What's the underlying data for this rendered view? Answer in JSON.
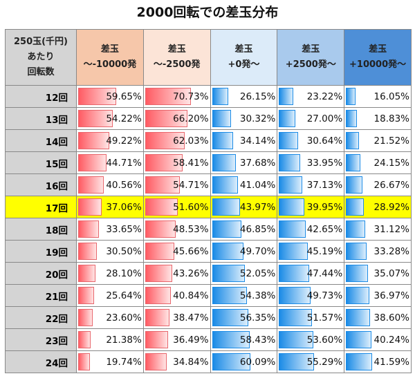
{
  "title": "2000回転での差玉分布",
  "chart_data": {
    "type": "table",
    "title": "2000回転での差玉分布",
    "row_header": [
      "250玉(千円)",
      "あたり",
      "回転数"
    ],
    "columns": [
      {
        "line1": "差玉",
        "line2": "～-10000発",
        "bg": "#f6c7aa",
        "bar": "red"
      },
      {
        "line1": "差玉",
        "line2": "～-2500発",
        "bg": "#fce4d7",
        "bar": "red"
      },
      {
        "line1": "差玉",
        "line2": "+0発～",
        "bg": "#dcebf9",
        "bar": "blue"
      },
      {
        "line1": "差玉",
        "line2": "+2500発～",
        "bg": "#a9caed",
        "bar": "blue"
      },
      {
        "line1": "差玉",
        "line2": "+10000発～",
        "bg": "#4e8fd7",
        "bar": "blue"
      }
    ],
    "highlight_row": "17回",
    "highlight_color": "#ffff00",
    "rows": [
      {
        "label": "12回",
        "values": [
          59.65,
          70.73,
          26.15,
          23.22,
          16.05
        ]
      },
      {
        "label": "13回",
        "values": [
          54.22,
          66.2,
          30.32,
          27.0,
          18.83
        ]
      },
      {
        "label": "14回",
        "values": [
          49.22,
          62.03,
          34.14,
          30.64,
          21.52
        ]
      },
      {
        "label": "15回",
        "values": [
          44.71,
          58.41,
          37.68,
          33.95,
          24.15
        ]
      },
      {
        "label": "16回",
        "values": [
          40.56,
          54.71,
          41.04,
          37.13,
          26.67
        ]
      },
      {
        "label": "17回",
        "values": [
          37.06,
          51.6,
          43.97,
          39.95,
          28.92
        ]
      },
      {
        "label": "18回",
        "values": [
          33.65,
          48.53,
          46.85,
          42.65,
          31.12
        ]
      },
      {
        "label": "19回",
        "values": [
          30.5,
          45.66,
          49.7,
          45.19,
          33.28
        ]
      },
      {
        "label": "20回",
        "values": [
          28.1,
          43.26,
          52.05,
          47.44,
          35.07
        ]
      },
      {
        "label": "21回",
        "values": [
          25.64,
          40.84,
          54.38,
          49.73,
          36.97
        ]
      },
      {
        "label": "22回",
        "values": [
          23.6,
          38.47,
          56.35,
          51.57,
          38.6
        ]
      },
      {
        "label": "23回",
        "values": [
          21.38,
          36.49,
          58.43,
          53.6,
          40.24
        ]
      },
      {
        "label": "24回",
        "values": [
          19.74,
          34.84,
          60.09,
          55.29,
          41.59
        ]
      }
    ]
  }
}
